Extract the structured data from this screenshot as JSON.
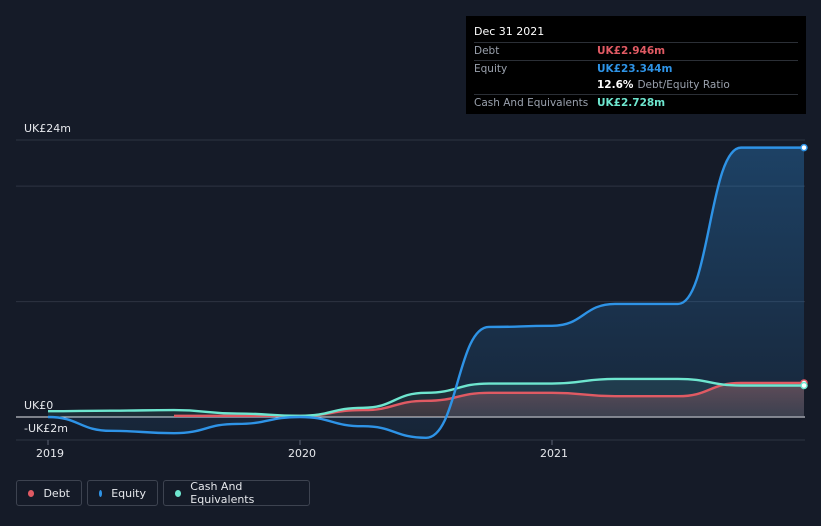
{
  "tooltip": {
    "date": "Dec 31 2021",
    "debt_label": "Debt",
    "debt_value": "UK£2.946m",
    "equity_label": "Equity",
    "equity_value": "UK£23.344m",
    "ratio_value": "12.6%",
    "ratio_label": "Debt/Equity Ratio",
    "cash_label": "Cash And Equivalents",
    "cash_value": "UK£2.728m"
  },
  "legend": {
    "debt": "Debt",
    "equity": "Equity",
    "cash": "Cash And Equivalents"
  },
  "colors": {
    "debt": "#e05a63",
    "equity": "#2e93e6",
    "cash": "#6ee6cf",
    "background": "#151b28"
  },
  "chart_data": {
    "type": "area",
    "x_ticks": [
      "2019",
      "2020",
      "2021"
    ],
    "y_ticks": [
      "UK£24m",
      "UK£0",
      "-UK£2m"
    ],
    "ylim": [
      -2,
      24
    ],
    "xlim": [
      2019.0,
      2022.0
    ],
    "grid": true,
    "legend_placement": "bottom-left",
    "series": [
      {
        "name": "Debt",
        "points": [
          [
            2019.5,
            0.1
          ],
          [
            2020.0,
            0.1
          ],
          [
            2020.25,
            0.6
          ],
          [
            2020.5,
            1.4
          ],
          [
            2020.75,
            2.1
          ],
          [
            2021.0,
            2.1
          ],
          [
            2021.25,
            1.8
          ],
          [
            2021.5,
            1.8
          ],
          [
            2021.75,
            2.95
          ],
          [
            2022.0,
            2.95
          ]
        ]
      },
      {
        "name": "Equity",
        "points": [
          [
            2019.0,
            0.0
          ],
          [
            2019.25,
            -1.2
          ],
          [
            2019.5,
            -1.4
          ],
          [
            2019.75,
            -0.6
          ],
          [
            2020.0,
            0.0
          ],
          [
            2020.25,
            -0.8
          ],
          [
            2020.5,
            -1.8
          ],
          [
            2020.75,
            7.8
          ],
          [
            2021.0,
            7.9
          ],
          [
            2021.25,
            9.8
          ],
          [
            2021.5,
            9.8
          ],
          [
            2021.75,
            23.34
          ],
          [
            2022.0,
            23.34
          ]
        ]
      },
      {
        "name": "Cash And Equivalents",
        "points": [
          [
            2019.0,
            0.5
          ],
          [
            2019.25,
            0.55
          ],
          [
            2019.5,
            0.6
          ],
          [
            2019.75,
            0.3
          ],
          [
            2020.0,
            0.1
          ],
          [
            2020.25,
            0.8
          ],
          [
            2020.5,
            2.1
          ],
          [
            2020.75,
            2.9
          ],
          [
            2021.0,
            2.9
          ],
          [
            2021.25,
            3.3
          ],
          [
            2021.5,
            3.3
          ],
          [
            2021.75,
            2.73
          ],
          [
            2022.0,
            2.73
          ]
        ]
      }
    ]
  }
}
